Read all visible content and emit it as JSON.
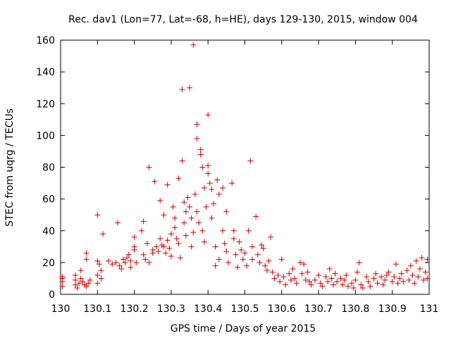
{
  "chart_data": {
    "type": "scatter",
    "title": "Rec. dav1 (Lon=77, Lat=-68, h=HE), days 129-130, 2015, window 004",
    "xlabel": "GPS time / Days of year 2015",
    "ylabel": "STEC from uqrg / TECUs",
    "xlim": [
      130,
      131
    ],
    "ylim": [
      0,
      160
    ],
    "x_ticks": [
      "130",
      "130.1",
      "130.2",
      "130.3",
      "130.4",
      "130.5",
      "130.6",
      "130.7",
      "130.8",
      "130.9",
      "131"
    ],
    "y_ticks": [
      "0",
      "20",
      "40",
      "60",
      "80",
      "100",
      "120",
      "140",
      "160"
    ],
    "grid": false,
    "legend": "none",
    "marker": "plus",
    "color": "#cc0000",
    "series": [
      {
        "points": [
          [
            130.005,
            11
          ],
          [
            130.005,
            8
          ],
          [
            130.005,
            5
          ],
          [
            130.005,
            10
          ],
          [
            130.04,
            12
          ],
          [
            130.04,
            9
          ],
          [
            130.04,
            6
          ],
          [
            130.045,
            4
          ],
          [
            130.05,
            7
          ],
          [
            130.055,
            10
          ],
          [
            130.055,
            15
          ],
          [
            130.06,
            8
          ],
          [
            130.065,
            6
          ],
          [
            130.07,
            26
          ],
          [
            130.07,
            22
          ],
          [
            130.07,
            5
          ],
          [
            130.075,
            7
          ],
          [
            130.08,
            9
          ],
          [
            130.1,
            50
          ],
          [
            130.1,
            21
          ],
          [
            130.1,
            12
          ],
          [
            130.1,
            7
          ],
          [
            130.105,
            19
          ],
          [
            130.11,
            15
          ],
          [
            130.11,
            10
          ],
          [
            130.115,
            38
          ],
          [
            130.13,
            21
          ],
          [
            130.14,
            19
          ],
          [
            130.15,
            20
          ],
          [
            130.155,
            45
          ],
          [
            130.16,
            18
          ],
          [
            130.165,
            16
          ],
          [
            130.17,
            22
          ],
          [
            130.175,
            20
          ],
          [
            130.18,
            23
          ],
          [
            130.185,
            25
          ],
          [
            130.19,
            21
          ],
          [
            130.19,
            17
          ],
          [
            130.2,
            36
          ],
          [
            130.2,
            30
          ],
          [
            130.2,
            28
          ],
          [
            130.205,
            20
          ],
          [
            130.22,
            40
          ],
          [
            130.225,
            46
          ],
          [
            130.225,
            25
          ],
          [
            130.23,
            22
          ],
          [
            130.235,
            32
          ],
          [
            130.24,
            80
          ],
          [
            130.24,
            20
          ],
          [
            130.25,
            28
          ],
          [
            130.25,
            26
          ],
          [
            130.255,
            71
          ],
          [
            130.26,
            30
          ],
          [
            130.265,
            27
          ],
          [
            130.27,
            59
          ],
          [
            130.27,
            35
          ],
          [
            130.275,
            31
          ],
          [
            130.28,
            50
          ],
          [
            130.28,
            30
          ],
          [
            130.285,
            26
          ],
          [
            130.29,
            69
          ],
          [
            130.29,
            34
          ],
          [
            130.295,
            29
          ],
          [
            130.3,
            24
          ],
          [
            130.3,
            38
          ],
          [
            130.305,
            55
          ],
          [
            130.31,
            48
          ],
          [
            130.31,
            42
          ],
          [
            130.315,
            35
          ],
          [
            130.32,
            73
          ],
          [
            130.32,
            32
          ],
          [
            130.325,
            23
          ],
          [
            130.33,
            129
          ],
          [
            130.33,
            84
          ],
          [
            130.335,
            58
          ],
          [
            130.335,
            45
          ],
          [
            130.34,
            52
          ],
          [
            130.34,
            37
          ],
          [
            130.345,
            61
          ],
          [
            130.35,
            130
          ],
          [
            130.35,
            55
          ],
          [
            130.355,
            48
          ],
          [
            130.355,
            30
          ],
          [
            130.36,
            157
          ],
          [
            130.36,
            39
          ],
          [
            130.365,
            63
          ],
          [
            130.37,
            107
          ],
          [
            130.37,
            98
          ],
          [
            130.37,
            52
          ],
          [
            130.375,
            45
          ],
          [
            130.38,
            91
          ],
          [
            130.38,
            88
          ],
          [
            130.385,
            80
          ],
          [
            130.385,
            40
          ],
          [
            130.39,
            67
          ],
          [
            130.39,
            33
          ],
          [
            130.395,
            55
          ],
          [
            130.4,
            113
          ],
          [
            130.4,
            81
          ],
          [
            130.4,
            76
          ],
          [
            130.405,
            70
          ],
          [
            130.41,
            66
          ],
          [
            130.41,
            48
          ],
          [
            130.415,
            57
          ],
          [
            130.42,
            30
          ],
          [
            130.42,
            18
          ],
          [
            130.425,
            72
          ],
          [
            130.43,
            63
          ],
          [
            130.43,
            22
          ],
          [
            130.44,
            67
          ],
          [
            130.44,
            40
          ],
          [
            130.445,
            32
          ],
          [
            130.45,
            52
          ],
          [
            130.45,
            27
          ],
          [
            130.455,
            20
          ],
          [
            130.465,
            70
          ],
          [
            130.47,
            40
          ],
          [
            130.47,
            35
          ],
          [
            130.475,
            25
          ],
          [
            130.48,
            17
          ],
          [
            130.485,
            33
          ],
          [
            130.49,
            28
          ],
          [
            130.495,
            22
          ],
          [
            130.5,
            26
          ],
          [
            130.505,
            18
          ],
          [
            130.51,
            40
          ],
          [
            130.515,
            84
          ],
          [
            130.52,
            30
          ],
          [
            130.52,
            22
          ],
          [
            130.53,
            49
          ],
          [
            130.535,
            25
          ],
          [
            130.54,
            20
          ],
          [
            130.545,
            31
          ],
          [
            130.55,
            29
          ],
          [
            130.555,
            18
          ],
          [
            130.56,
            15
          ],
          [
            130.565,
            21
          ],
          [
            130.57,
            36
          ],
          [
            130.575,
            14
          ],
          [
            130.58,
            10
          ],
          [
            130.59,
            12
          ],
          [
            130.595,
            8
          ],
          [
            130.6,
            22
          ],
          [
            130.605,
            11
          ],
          [
            130.61,
            6
          ],
          [
            130.62,
            13
          ],
          [
            130.625,
            9
          ],
          [
            130.63,
            16
          ],
          [
            130.635,
            10
          ],
          [
            130.64,
            7
          ],
          [
            130.65,
            20
          ],
          [
            130.655,
            13
          ],
          [
            130.66,
            19
          ],
          [
            130.665,
            9
          ],
          [
            130.67,
            14
          ],
          [
            130.675,
            8
          ],
          [
            130.68,
            6
          ],
          [
            130.69,
            9
          ],
          [
            130.7,
            12
          ],
          [
            130.705,
            7
          ],
          [
            130.71,
            5
          ],
          [
            130.72,
            11
          ],
          [
            130.725,
            8
          ],
          [
            130.73,
            16
          ],
          [
            130.735,
            10
          ],
          [
            130.74,
            6
          ],
          [
            130.745,
            13
          ],
          [
            130.75,
            8
          ],
          [
            130.76,
            10
          ],
          [
            130.765,
            6
          ],
          [
            130.77,
            9
          ],
          [
            130.775,
            12
          ],
          [
            130.78,
            5
          ],
          [
            130.79,
            7
          ],
          [
            130.795,
            4
          ],
          [
            130.8,
            9
          ],
          [
            130.805,
            14
          ],
          [
            130.81,
            20
          ],
          [
            130.815,
            6
          ],
          [
            130.82,
            4
          ],
          [
            130.83,
            11
          ],
          [
            130.835,
            8
          ],
          [
            130.84,
            5
          ],
          [
            130.85,
            10
          ],
          [
            130.855,
            13
          ],
          [
            130.86,
            7
          ],
          [
            130.87,
            11
          ],
          [
            130.875,
            6
          ],
          [
            130.88,
            9
          ],
          [
            130.885,
            12
          ],
          [
            130.89,
            14
          ],
          [
            130.9,
            8
          ],
          [
            130.905,
            11
          ],
          [
            130.91,
            19
          ],
          [
            130.915,
            7
          ],
          [
            130.92,
            10
          ],
          [
            130.925,
            13
          ],
          [
            130.93,
            8
          ],
          [
            130.94,
            15
          ],
          [
            130.945,
            9
          ],
          [
            130.95,
            18
          ],
          [
            130.955,
            12
          ],
          [
            130.96,
            7
          ],
          [
            130.965,
            21
          ],
          [
            130.97,
            11
          ],
          [
            130.975,
            16
          ],
          [
            130.98,
            23
          ],
          [
            130.985,
            9
          ],
          [
            130.99,
            14
          ],
          [
            130.995,
            22
          ],
          [
            130.995,
            10
          ]
        ]
      }
    ]
  }
}
